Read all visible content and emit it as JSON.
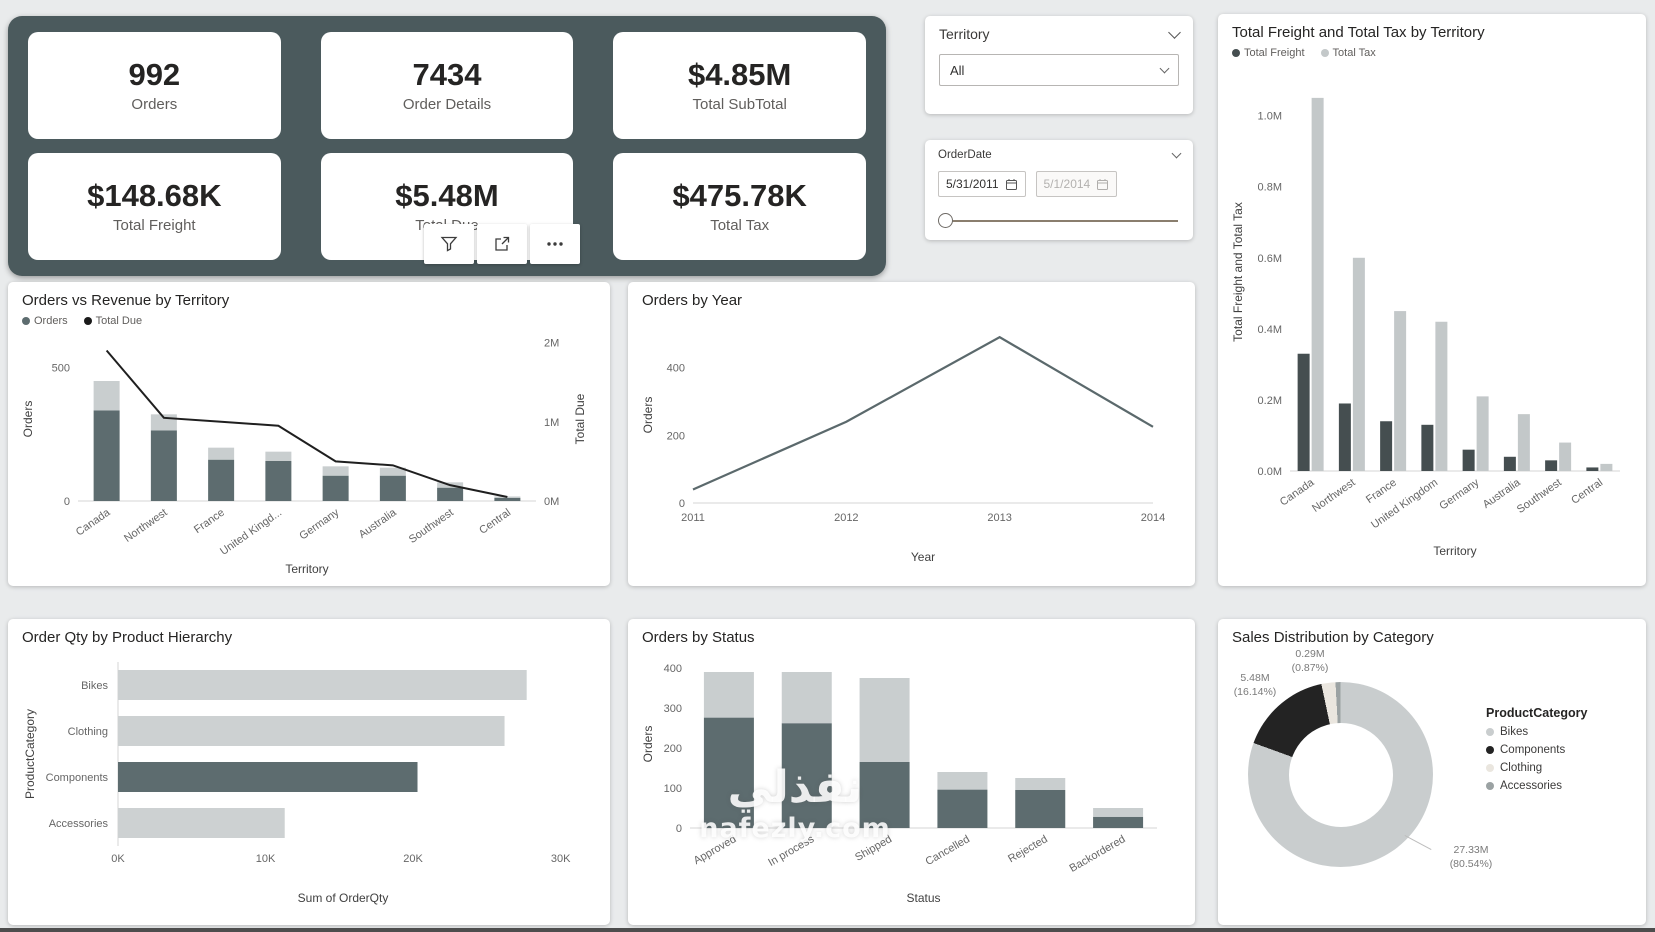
{
  "kpis": [
    {
      "value": "992",
      "label": "Orders"
    },
    {
      "value": "7434",
      "label": "Order Details"
    },
    {
      "value": "$4.85M",
      "label": "Total SubTotal"
    },
    {
      "value": "$148.68K",
      "label": "Total Freight"
    },
    {
      "value": "$5.48M",
      "label": "Total Due"
    },
    {
      "value": "$475.78K",
      "label": "Total Tax"
    }
  ],
  "slicers": {
    "territory": {
      "title": "Territory",
      "selected": "All"
    },
    "orderdate": {
      "title": "OrderDate",
      "start_date": "5/31/2011",
      "end_date": "5/1/2014"
    }
  },
  "watermark": {
    "arabic": "نفذلي",
    "domain": "nafezly.com"
  },
  "chart_data": {
    "orders_vs_revenue": {
      "type": "combo",
      "title": "Orders vs Revenue by Territory",
      "legend": [
        {
          "name": "Orders",
          "color": "#5d6c6f"
        },
        {
          "name": "Total Due",
          "color": "#1a1a1a"
        }
      ],
      "categories": [
        "Canada",
        "Northwest",
        "France",
        "United Kingd...",
        "Germany",
        "Australia",
        "Southwest",
        "Central"
      ],
      "bar_series": [
        {
          "values": [
            340,
            265,
            155,
            150,
            95,
            95,
            50,
            12
          ],
          "color": "#5d6c6f"
        },
        {
          "values": [
            110,
            60,
            45,
            35,
            35,
            30,
            20,
            5
          ],
          "color": "#c9cecf"
        }
      ],
      "line_series": {
        "name": "Total Due",
        "values": [
          1.9,
          1.05,
          1.0,
          0.95,
          0.5,
          0.45,
          0.2,
          0.05
        ],
        "color": "#1f1f1f"
      },
      "left_axis": {
        "label": "Orders",
        "tick_values": [
          0,
          500
        ],
        "max": 615
      },
      "right_axis": {
        "label": "Total Due",
        "tick_labels": [
          "0M",
          "1M",
          "2M"
        ],
        "tick_values": [
          0,
          1,
          2
        ],
        "max": 2.07
      },
      "xlabel": "Territory"
    },
    "orders_by_year": {
      "type": "line",
      "title": "Orders by Year",
      "x": [
        "2011",
        "2012",
        "2013",
        "2014"
      ],
      "values": [
        40,
        240,
        490,
        225
      ],
      "color": "#5b696c",
      "ylabel": "Orders",
      "xlabel": "Year",
      "ytick_values": [
        0,
        200,
        400
      ],
      "ymax": 520
    },
    "freight_tax_by_territory": {
      "type": "bar",
      "title": "Total Freight and Total Tax by Territory",
      "legend": [
        {
          "name": "Total Freight",
          "color": "#454e50"
        },
        {
          "name": "Total Tax",
          "color": "#c3c8c9"
        }
      ],
      "categories": [
        "Canada",
        "Northwest",
        "France",
        "United Kingdom",
        "Germany",
        "Australia",
        "Southwest",
        "Central"
      ],
      "series": [
        {
          "name": "Total Freight",
          "values": [
            0.33,
            0.19,
            0.14,
            0.13,
            0.06,
            0.04,
            0.03,
            0.01
          ],
          "color": "#454e50"
        },
        {
          "name": "Total Tax",
          "values": [
            1.05,
            0.6,
            0.45,
            0.42,
            0.21,
            0.16,
            0.08,
            0.02
          ],
          "color": "#c3c8c9"
        }
      ],
      "ylabel": "Total Freight and Total Tax",
      "xlabel": "Territory",
      "ytick_labels": [
        "0.0M",
        "0.2M",
        "0.4M",
        "0.6M",
        "0.8M",
        "1.0M"
      ],
      "ytick_values": [
        0,
        0.2,
        0.4,
        0.6,
        0.8,
        1.0
      ],
      "ymax": 1.12
    },
    "order_qty_by_hierarchy": {
      "type": "bar",
      "orientation": "horizontal",
      "title": "Order Qty by Product Hierarchy",
      "categories": [
        "Bikes",
        "Clothing",
        "Components",
        "Accessories"
      ],
      "values": [
        27.7,
        26.2,
        20.3,
        11.3
      ],
      "colors": [
        "#cdd1d2",
        "#cdd1d2",
        "#5d6c6f",
        "#cdd1d2"
      ],
      "ylabel": "ProductCategory",
      "xlabel": "Sum of OrderQty",
      "xtick_labels": [
        "0K",
        "10K",
        "20K",
        "30K"
      ],
      "xtick_values": [
        0,
        10,
        20,
        30
      ],
      "xmax": 30.5
    },
    "orders_by_status": {
      "type": "bar",
      "stacked": true,
      "title": "Orders by Status",
      "categories": [
        "Approved",
        "In process",
        "Shipped",
        "Cancelled",
        "Rejected",
        "Backordered"
      ],
      "series": [
        {
          "values": [
            276,
            262,
            165,
            96,
            95,
            28
          ],
          "color": "#5d6c6f"
        },
        {
          "values": [
            114,
            128,
            210,
            44,
            30,
            22
          ],
          "color": "#c9cecf"
        }
      ],
      "ylabel": "Orders",
      "xlabel": "Status",
      "ytick_values": [
        0,
        100,
        200,
        300,
        400
      ],
      "ymax": 420
    },
    "sales_by_category": {
      "type": "pie",
      "title": "Sales Distribution by Category",
      "legend_title": "ProductCategory",
      "slices": [
        {
          "label": "Bikes",
          "pct": 80.54,
          "color": "#c9cdce",
          "callout_value": "27.33M",
          "callout_pct": "(80.54%)"
        },
        {
          "label": "Components",
          "pct": 16.14,
          "color": "#232323",
          "callout_value": "5.48M",
          "callout_pct": "(16.14%)"
        },
        {
          "label": "Clothing",
          "pct": 2.45,
          "color": "#eae6df"
        },
        {
          "label": "Accessories",
          "pct": 0.87,
          "color": "#9ba2a3",
          "callout_value": "0.29M",
          "callout_pct": "(0.87%)"
        }
      ]
    }
  }
}
